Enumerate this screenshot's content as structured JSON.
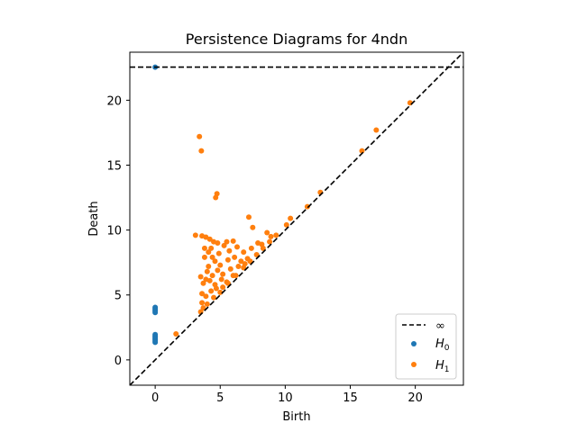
{
  "chart_data": {
    "type": "scatter",
    "title": "Persistence Diagrams for 4ndn",
    "xlabel": "Birth",
    "ylabel": "Death",
    "xlim": [
      -1.95,
      23.7
    ],
    "ylim": [
      -1.95,
      23.7
    ],
    "xticks": [
      0,
      5,
      10,
      15,
      20
    ],
    "yticks": [
      0,
      5,
      10,
      15,
      20
    ],
    "grid": false,
    "legend_position": "lower-right",
    "infinity_line": {
      "y": 22.55,
      "label": "∞",
      "color": "#000000"
    },
    "diagonal": {
      "color": "#000000"
    },
    "series": [
      {
        "name": "H0",
        "label_base": "H",
        "label_sub": "0",
        "color": "#1f77b4",
        "points": [
          [
            0,
            22.55
          ],
          [
            0,
            4.05
          ],
          [
            0,
            3.95
          ],
          [
            0,
            3.85
          ],
          [
            0,
            3.75
          ],
          [
            0,
            3.65
          ],
          [
            0,
            1.95
          ],
          [
            0,
            1.85
          ],
          [
            0,
            1.75
          ],
          [
            0,
            1.65
          ],
          [
            0,
            1.55
          ],
          [
            0,
            1.45
          ],
          [
            0,
            1.35
          ]
        ]
      },
      {
        "name": "H1",
        "label_base": "H",
        "label_sub": "1",
        "color": "#ff7f0e",
        "points": [
          [
            19.6,
            19.8
          ],
          [
            17.0,
            17.7
          ],
          [
            15.9,
            16.1
          ],
          [
            12.7,
            12.9
          ],
          [
            11.7,
            11.8
          ],
          [
            10.4,
            10.9
          ],
          [
            10.1,
            10.4
          ],
          [
            3.4,
            17.2
          ],
          [
            3.55,
            16.1
          ],
          [
            4.75,
            12.8
          ],
          [
            4.65,
            12.5
          ],
          [
            7.2,
            11.0
          ],
          [
            7.5,
            10.2
          ],
          [
            3.1,
            9.6
          ],
          [
            3.6,
            9.55
          ],
          [
            3.9,
            9.45
          ],
          [
            4.2,
            9.3
          ],
          [
            4.8,
            9.0
          ],
          [
            5.5,
            9.1
          ],
          [
            6.0,
            9.15
          ],
          [
            8.6,
            9.8
          ],
          [
            8.9,
            9.5
          ],
          [
            1.6,
            2.0
          ],
          [
            3.5,
            6.4
          ],
          [
            3.8,
            7.9
          ],
          [
            4.3,
            8.6
          ],
          [
            4.9,
            8.2
          ],
          [
            5.3,
            8.8
          ],
          [
            5.7,
            8.4
          ],
          [
            6.3,
            8.7
          ],
          [
            6.8,
            8.3
          ],
          [
            7.4,
            8.6
          ],
          [
            7.9,
            9.0
          ],
          [
            8.2,
            8.9
          ],
          [
            4.1,
            7.2
          ],
          [
            4.6,
            7.6
          ],
          [
            5.0,
            7.3
          ],
          [
            5.6,
            7.7
          ],
          [
            6.1,
            7.9
          ],
          [
            6.6,
            7.6
          ],
          [
            7.1,
            7.8
          ],
          [
            4.0,
            6.8
          ],
          [
            4.4,
            6.5
          ],
          [
            4.8,
            6.9
          ],
          [
            5.2,
            6.6
          ],
          [
            5.8,
            7.0
          ],
          [
            6.4,
            7.2
          ],
          [
            6.9,
            7.4
          ],
          [
            3.7,
            5.9
          ],
          [
            4.2,
            6.1
          ],
          [
            4.6,
            5.8
          ],
          [
            5.1,
            6.2
          ],
          [
            5.5,
            6.0
          ],
          [
            6.0,
            6.5
          ],
          [
            3.6,
            4.4
          ],
          [
            3.9,
            4.9
          ],
          [
            4.3,
            5.3
          ],
          [
            4.7,
            5.5
          ],
          [
            5.2,
            5.6
          ],
          [
            3.5,
            3.7
          ],
          [
            3.7,
            4.0
          ],
          [
            4.0,
            4.3
          ],
          [
            4.5,
            4.8
          ],
          [
            5.0,
            5.2
          ],
          [
            5.6,
            5.9
          ],
          [
            6.2,
            6.5
          ],
          [
            6.8,
            7.1
          ],
          [
            7.3,
            7.6
          ],
          [
            7.8,
            8.1
          ],
          [
            8.3,
            8.6
          ],
          [
            8.8,
            9.1
          ],
          [
            9.3,
            9.6
          ],
          [
            4.4,
            7.9
          ],
          [
            4.1,
            8.3
          ],
          [
            3.9,
            6.2
          ],
          [
            3.6,
            5.1
          ],
          [
            3.8,
            8.6
          ],
          [
            4.5,
            9.1
          ]
        ]
      }
    ]
  }
}
